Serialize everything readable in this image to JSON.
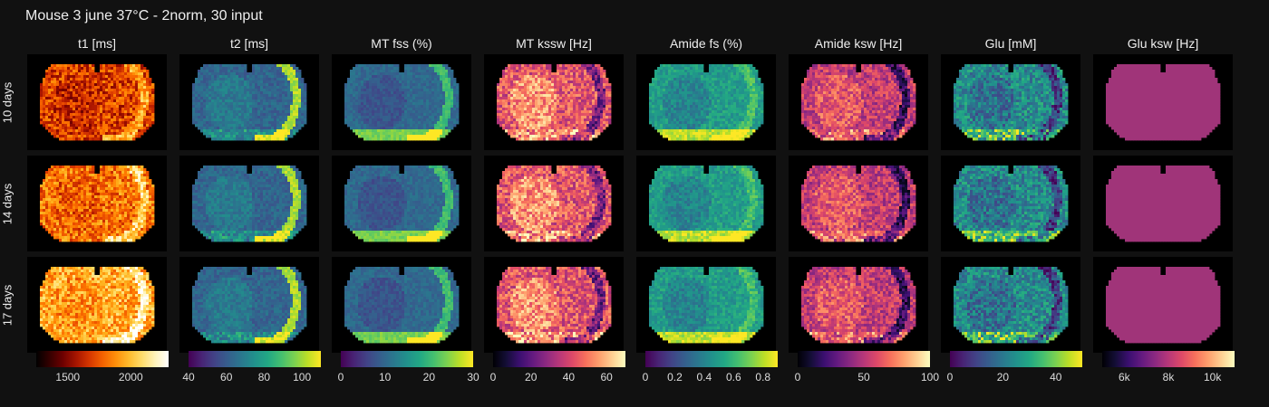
{
  "title": "Mouse 3 june 37°C - 2norm, 30 input",
  "row_labels": [
    "10 days",
    "14 days",
    "17 days"
  ],
  "chart_data": {
    "type": "heatmap",
    "title": "Mouse 3 june 37°C - 2norm, 30 input",
    "rows": [
      "10 days",
      "14 days",
      "17 days"
    ],
    "columns": [
      {
        "title": "t1 [ms]",
        "colormap": "hot",
        "range": [
          1250,
          2300
        ],
        "ticks": [
          1500,
          2000
        ],
        "tick_labels": [
          "1500",
          "2000"
        ],
        "uniform": false
      },
      {
        "title": "t2 [ms]",
        "colormap": "viridis",
        "range": [
          40,
          110
        ],
        "ticks": [
          40,
          60,
          80,
          100
        ],
        "tick_labels": [
          "40",
          "60",
          "80",
          "100"
        ],
        "uniform": false
      },
      {
        "title": "MT fss (%)",
        "colormap": "viridis",
        "range": [
          0,
          30
        ],
        "ticks": [
          0,
          10,
          20,
          30
        ],
        "tick_labels": [
          "0",
          "10",
          "20",
          "30"
        ],
        "uniform": false
      },
      {
        "title": "MT kssw [Hz]",
        "colormap": "magma",
        "range": [
          0,
          70
        ],
        "ticks": [
          0,
          20,
          40,
          60
        ],
        "tick_labels": [
          "0",
          "20",
          "40",
          "60"
        ],
        "uniform": false
      },
      {
        "title": "Amide fs (%)",
        "colormap": "viridis",
        "range": [
          0,
          0.9
        ],
        "ticks": [
          0,
          0.2,
          0.4,
          0.6,
          0.8
        ],
        "tick_labels": [
          "0",
          "0.2",
          "0.4",
          "0.6",
          "0.8"
        ],
        "uniform": false
      },
      {
        "title": "Amide ksw [Hz]",
        "colormap": "magma",
        "range": [
          0,
          100
        ],
        "ticks": [
          0,
          50,
          100
        ],
        "tick_labels": [
          "0",
          "50",
          "100"
        ],
        "uniform": false
      },
      {
        "title": "Glu [mM]",
        "colormap": "viridis",
        "range": [
          0,
          50
        ],
        "ticks": [
          0,
          20,
          40
        ],
        "tick_labels": [
          "0",
          "20",
          "40"
        ],
        "uniform": false
      },
      {
        "title": "Glu ksw [Hz]",
        "colormap": "magma",
        "range": [
          5000,
          11000
        ],
        "ticks": [
          6000,
          8000,
          10000
        ],
        "tick_labels": [
          "6k",
          "8k",
          "10k"
        ],
        "uniform": true
      }
    ]
  },
  "colors": {
    "background": "#111111",
    "panel": "#000000",
    "uniform_fill": "#a03479"
  }
}
